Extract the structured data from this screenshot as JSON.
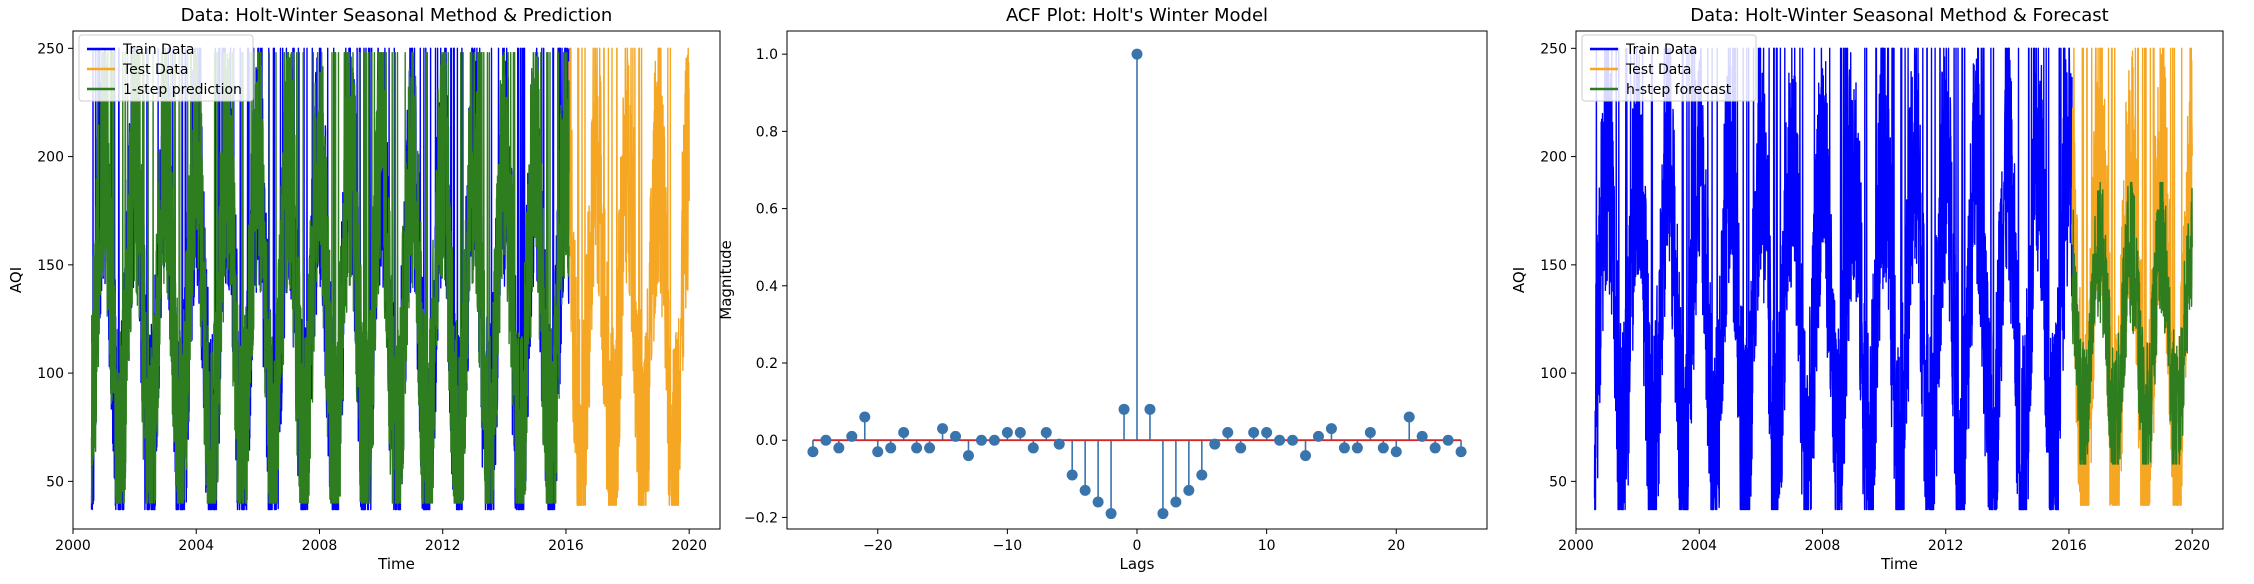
{
  "colors": {
    "train": "#0000ff",
    "test": "#f5a623",
    "pred": "#2e7d1e",
    "stem": "#3a74ad",
    "baseline": "#d62728"
  },
  "chart_data": [
    {
      "type": "line",
      "title": "Data: Holt-Winter Seasonal Method & Prediction",
      "xlabel": "Time",
      "ylabel": "AQI",
      "xlim": [
        2000.0,
        2021.0
      ],
      "ylim": [
        28,
        258
      ],
      "xticks": [
        2000,
        2004,
        2008,
        2012,
        2016,
        2020
      ],
      "yticks": [
        50,
        100,
        150,
        200,
        250
      ],
      "legend_position": "top-left",
      "series": [
        {
          "name": "Train Data",
          "color": "#0000ff",
          "x_range": [
            2000.6,
            2016.1
          ],
          "min": 37,
          "max": 250
        },
        {
          "name": "Test Data",
          "color": "#f5a623",
          "x_range": [
            2016.1,
            2020.0
          ],
          "min": 39,
          "max": 250
        },
        {
          "name": "1-step prediction",
          "color": "#2e7d1e",
          "x_range": [
            2000.6,
            2016.1
          ],
          "min": 40,
          "max": 248
        }
      ]
    },
    {
      "type": "stem",
      "title": "ACF Plot: Holt's Winter Model",
      "xlabel": "Lags",
      "ylabel": "Magnitude",
      "xlim": [
        -27,
        27
      ],
      "ylim": [
        -0.23,
        1.06
      ],
      "xticks": [
        -20,
        -10,
        0,
        10,
        20
      ],
      "yticks": [
        -0.2,
        0.0,
        0.2,
        0.4,
        0.6,
        0.8,
        1.0
      ],
      "lags": [
        -25,
        -24,
        -23,
        -22,
        -21,
        -20,
        -19,
        -18,
        -17,
        -16,
        -15,
        -14,
        -13,
        -12,
        -11,
        -10,
        -9,
        -8,
        -7,
        -6,
        -5,
        -4,
        -3,
        -2,
        -1,
        0,
        1,
        2,
        3,
        4,
        5,
        6,
        7,
        8,
        9,
        10,
        11,
        12,
        13,
        14,
        15,
        16,
        17,
        18,
        19,
        20,
        21,
        22,
        23,
        24,
        25
      ],
      "values": [
        -0.03,
        0.0,
        -0.02,
        0.01,
        0.06,
        -0.03,
        -0.02,
        0.02,
        -0.02,
        -0.02,
        0.03,
        0.01,
        -0.04,
        0.0,
        0.0,
        0.02,
        0.02,
        -0.02,
        0.02,
        -0.01,
        -0.09,
        -0.13,
        -0.16,
        -0.19,
        0.08,
        1.0,
        0.08,
        -0.19,
        -0.16,
        -0.13,
        -0.09,
        -0.01,
        0.02,
        -0.02,
        0.02,
        0.02,
        0.0,
        0.0,
        -0.04,
        0.01,
        0.03,
        -0.02,
        -0.02,
        0.02,
        -0.02,
        -0.03,
        0.06,
        0.01,
        -0.02,
        0.0,
        -0.03
      ]
    },
    {
      "type": "line",
      "title": "Data: Holt-Winter Seasonal Method & Forecast",
      "xlabel": "Time",
      "ylabel": "AQI",
      "xlim": [
        2000.0,
        2021.0
      ],
      "ylim": [
        28,
        258
      ],
      "xticks": [
        2000,
        2004,
        2008,
        2012,
        2016,
        2020
      ],
      "yticks": [
        50,
        100,
        150,
        200,
        250
      ],
      "legend_position": "top-left",
      "series": [
        {
          "name": "Train Data",
          "color": "#0000ff",
          "x_range": [
            2000.6,
            2016.1
          ],
          "min": 37,
          "max": 250
        },
        {
          "name": "Test Data",
          "color": "#f5a623",
          "x_range": [
            2016.1,
            2020.0
          ],
          "min": 39,
          "max": 250
        },
        {
          "name": "h-step forecast",
          "color": "#2e7d1e",
          "x_range": [
            2016.1,
            2020.0
          ],
          "min": 58,
          "max": 188
        }
      ]
    }
  ]
}
